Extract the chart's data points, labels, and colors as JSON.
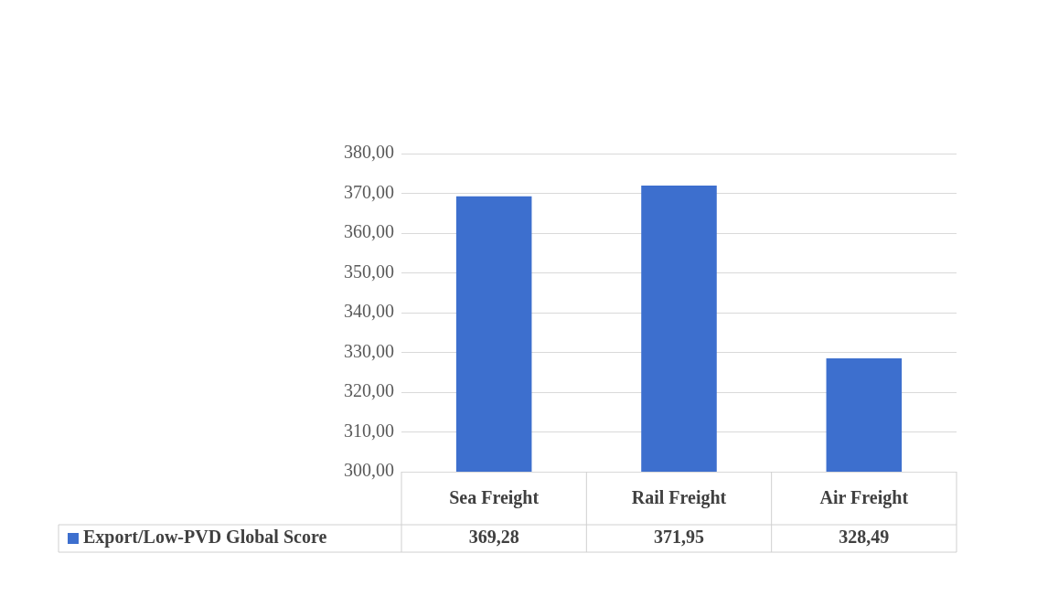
{
  "chart_data": {
    "type": "bar",
    "categories": [
      "Sea Freight",
      "Rail Freight",
      "Air Freight"
    ],
    "series": [
      {
        "name": "Export/Low-PVD Global Score",
        "color": "#3d6fce",
        "values": [
          369.28,
          371.95,
          328.49
        ],
        "value_labels": [
          "369,28",
          "371,95",
          "328,49"
        ]
      }
    ],
    "ylim": [
      300,
      380
    ],
    "yticks": [
      {
        "value": 300,
        "label": "300,00"
      },
      {
        "value": 310,
        "label": "310,00"
      },
      {
        "value": 320,
        "label": "320,00"
      },
      {
        "value": 330,
        "label": "330,00"
      },
      {
        "value": 340,
        "label": "340,00"
      },
      {
        "value": 350,
        "label": "350,00"
      },
      {
        "value": 360,
        "label": "360,00"
      },
      {
        "value": 370,
        "label": "370,00"
      },
      {
        "value": 380,
        "label": "380,00"
      }
    ],
    "grid": "y",
    "legend": "bottom left"
  }
}
